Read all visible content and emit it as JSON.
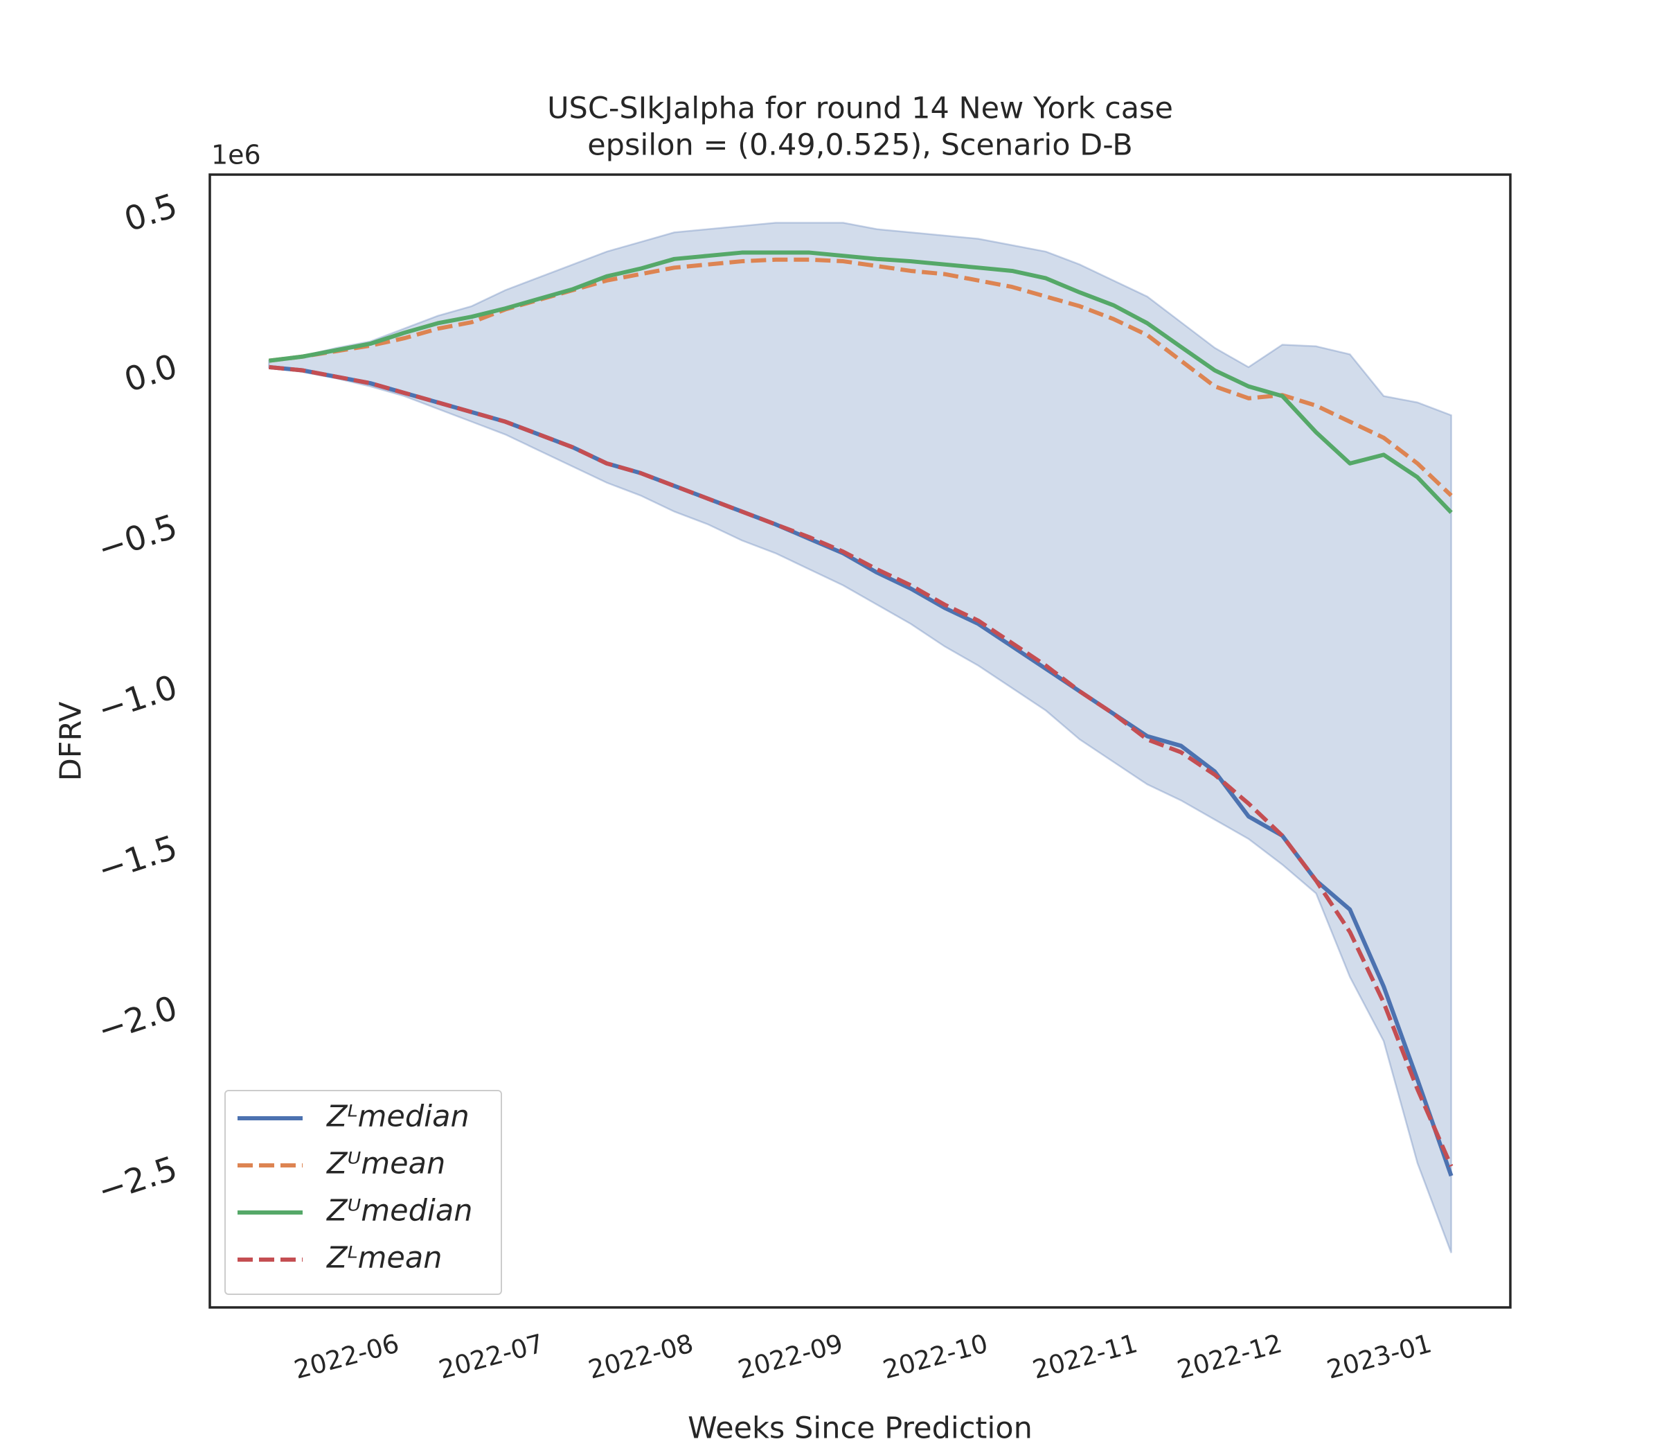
{
  "chart_data": {
    "type": "line",
    "title": "USC-SIkJalpha for round 14 New York  case",
    "subtitle": "epsilon = (0.49,0.525), Scenario D-B",
    "x_label": "Weeks Since Prediction",
    "y_label": "DFRV",
    "y_offset_label": "1e6",
    "x": [
      0,
      1,
      2,
      3,
      4,
      5,
      6,
      7,
      8,
      9,
      10,
      11,
      12,
      13,
      14,
      15,
      16,
      17,
      18,
      19,
      20,
      21,
      22,
      23,
      24,
      25,
      26,
      27,
      28,
      29,
      30,
      31,
      32,
      33,
      34,
      35
    ],
    "xlim": [
      -1.75,
      36.75
    ],
    "xticks": [
      {
        "value": 3.43,
        "label": "2022-06"
      },
      {
        "value": 7.71,
        "label": "2022-07"
      },
      {
        "value": 12.14,
        "label": "2022-08"
      },
      {
        "value": 16.57,
        "label": "2022-09"
      },
      {
        "value": 20.86,
        "label": "2022-10"
      },
      {
        "value": 25.29,
        "label": "2022-11"
      },
      {
        "value": 29.57,
        "label": "2022-12"
      },
      {
        "value": 34.0,
        "label": "2023-01"
      }
    ],
    "ylim": [
      -2.93,
      0.6
    ],
    "yticks": [
      {
        "value": -2.5,
        "label": "−2.5"
      },
      {
        "value": -2.0,
        "label": "−2.0"
      },
      {
        "value": -1.5,
        "label": "−1.5"
      },
      {
        "value": -1.0,
        "label": "−1.0"
      },
      {
        "value": -0.5,
        "label": "−0.5"
      },
      {
        "value": 0,
        "label": "0.0"
      },
      0.5
    ],
    "grid": false,
    "legend": "lower left",
    "band": {
      "color": "#4c72b0",
      "upper": [
        0.02,
        0.035,
        0.06,
        0.08,
        0.12,
        0.16,
        0.19,
        0.24,
        0.28,
        0.32,
        0.36,
        0.39,
        0.42,
        0.43,
        0.44,
        0.45,
        0.45,
        0.45,
        0.43,
        0.42,
        0.41,
        0.4,
        0.38,
        0.36,
        0.32,
        0.27,
        0.22,
        0.14,
        0.06,
        0.0,
        0.07,
        0.065,
        0.04,
        -0.09,
        -0.11,
        -0.15
      ],
      "lower": [
        0,
        -0.015,
        -0.035,
        -0.06,
        -0.09,
        -0.13,
        -0.17,
        -0.21,
        -0.26,
        -0.31,
        -0.36,
        -0.4,
        -0.45,
        -0.49,
        -0.54,
        -0.58,
        -0.63,
        -0.68,
        -0.74,
        -0.8,
        -0.87,
        -0.93,
        -1.0,
        -1.07,
        -1.16,
        -1.23,
        -1.3,
        -1.35,
        -1.41,
        -1.47,
        -1.55,
        -1.64,
        -1.9,
        -2.1,
        -2.48,
        -2.76
      ]
    },
    "series": [
      {
        "name": "Zᴸmedian",
        "color": "#4c72b0",
        "linestyle": "solid",
        "values": [
          0,
          -0.01,
          -0.03,
          -0.05,
          -0.08,
          -0.11,
          -0.14,
          -0.17,
          -0.21,
          -0.25,
          -0.3,
          -0.33,
          -0.37,
          -0.41,
          -0.45,
          -0.49,
          -0.535,
          -0.58,
          -0.64,
          -0.69,
          -0.75,
          -0.8,
          -0.87,
          -0.94,
          -1.01,
          -1.08,
          -1.15,
          -1.18,
          -1.26,
          -1.4,
          -1.46,
          -1.6,
          -1.69,
          -1.93,
          -2.22,
          -2.52
        ]
      },
      {
        "name": "Zᵁmean",
        "color": "#dd8452",
        "linestyle": "dashed",
        "values": [
          0.02,
          0.033,
          0.05,
          0.067,
          0.09,
          0.12,
          0.14,
          0.18,
          0.21,
          0.24,
          0.27,
          0.29,
          0.31,
          0.32,
          0.33,
          0.335,
          0.335,
          0.33,
          0.315,
          0.3,
          0.29,
          0.27,
          0.25,
          0.22,
          0.19,
          0.15,
          0.1,
          0.02,
          -0.06,
          -0.097,
          -0.087,
          -0.12,
          -0.17,
          -0.22,
          -0.3,
          -0.4
        ]
      },
      {
        "name": "Zᵁmedian",
        "color": "#55a868",
        "linestyle": "solid",
        "values": [
          0.02,
          0.033,
          0.053,
          0.073,
          0.107,
          0.137,
          0.157,
          0.183,
          0.213,
          0.243,
          0.283,
          0.307,
          0.337,
          0.347,
          0.357,
          0.357,
          0.357,
          0.347,
          0.337,
          0.33,
          0.32,
          0.31,
          0.3,
          0.277,
          0.233,
          0.193,
          0.137,
          0.063,
          -0.01,
          -0.06,
          -0.09,
          -0.203,
          -0.3,
          -0.273,
          -0.343,
          -0.453
        ]
      },
      {
        "name": "Zᴸmean",
        "color": "#c44e52",
        "linestyle": "dashed",
        "values": [
          0,
          -0.01,
          -0.03,
          -0.05,
          -0.08,
          -0.11,
          -0.14,
          -0.17,
          -0.21,
          -0.25,
          -0.3,
          -0.33,
          -0.37,
          -0.41,
          -0.45,
          -0.49,
          -0.53,
          -0.575,
          -0.63,
          -0.68,
          -0.74,
          -0.79,
          -0.86,
          -0.93,
          -1.01,
          -1.08,
          -1.16,
          -1.2,
          -1.27,
          -1.36,
          -1.46,
          -1.6,
          -1.76,
          -1.98,
          -2.25,
          -2.49
        ]
      }
    ]
  }
}
